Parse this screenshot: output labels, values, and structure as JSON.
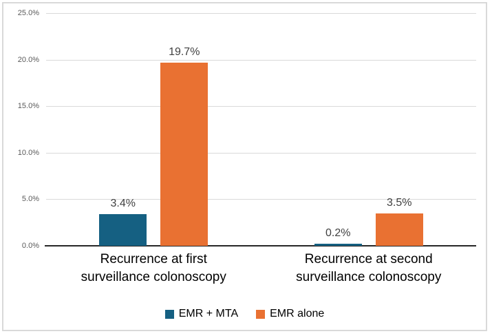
{
  "chart_data": {
    "type": "bar",
    "title": "",
    "categories": [
      "Recurrence at first surveillance colonoscopy",
      "Recurrence at second surveillance colonoscopy"
    ],
    "series": [
      {
        "name": "EMR + MTA",
        "color": "#156082",
        "values": [
          3.4,
          0.2
        ],
        "data_labels": [
          "3.4%",
          "0.2%"
        ]
      },
      {
        "name": "EMR alone",
        "color": "#E97132",
        "values": [
          19.7,
          3.5
        ],
        "data_labels": [
          "19.7%",
          "3.5%"
        ]
      }
    ],
    "y_axis": {
      "min": 0,
      "max": 25,
      "step": 5,
      "tick_labels": [
        "0.0%",
        "5.0%",
        "10.0%",
        "15.0%",
        "20.0%",
        "25.0%"
      ]
    },
    "grid": true,
    "legend_position": "bottom",
    "colors": {
      "gridline": "#D9D9D9",
      "axis_line": "#262626",
      "tick_label": "#595959",
      "data_label": "#404040",
      "category_label": "#000000",
      "legend_label": "#000000",
      "frame_border": "#D9D9D9",
      "background": "#FFFFFF"
    }
  }
}
